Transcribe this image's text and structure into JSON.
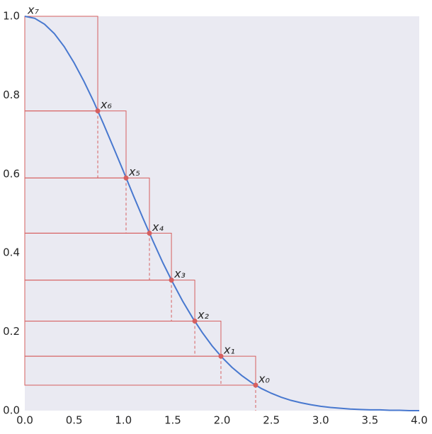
{
  "chart_data": {
    "type": "line",
    "xlim": [
      0,
      4
    ],
    "ylim": [
      0,
      1
    ],
    "xticks": [
      {
        "value": 0,
        "label": "0.0"
      },
      {
        "value": 0.5,
        "label": "0.5"
      },
      {
        "value": 1,
        "label": "1.0"
      },
      {
        "value": 1.5,
        "label": "1.5"
      },
      {
        "value": 2,
        "label": "2.0"
      },
      {
        "value": 2.5,
        "label": "2.5"
      },
      {
        "value": 3,
        "label": "3.0"
      },
      {
        "value": 3.5,
        "label": "3.5"
      },
      {
        "value": 4,
        "label": "4.0"
      }
    ],
    "yticks": [
      {
        "value": 0,
        "label": "0.0"
      },
      {
        "value": 0.2,
        "label": "0.2"
      },
      {
        "value": 0.4,
        "label": "0.4"
      },
      {
        "value": 0.6,
        "label": "0.6"
      },
      {
        "value": 0.8,
        "label": "0.8"
      },
      {
        "value": 1,
        "label": "1.0"
      }
    ],
    "curve": {
      "color": "#4878cf",
      "x": [
        0,
        0.1,
        0.2,
        0.3,
        0.4,
        0.5,
        0.6,
        0.7,
        0.8,
        0.9,
        1.0,
        1.1,
        1.2,
        1.3,
        1.4,
        1.5,
        1.6,
        1.7,
        1.8,
        1.9,
        2.0,
        2.1,
        2.2,
        2.3,
        2.4,
        2.5,
        2.6,
        2.7,
        2.8,
        2.9,
        3.0,
        3.1,
        3.2,
        3.3,
        3.4,
        3.5,
        3.6,
        3.7,
        3.8,
        3.9,
        4.0
      ],
      "values": [
        1,
        0.995,
        0.98,
        0.956,
        0.923,
        0.882,
        0.835,
        0.783,
        0.726,
        0.667,
        0.607,
        0.546,
        0.487,
        0.43,
        0.375,
        0.325,
        0.278,
        0.236,
        0.198,
        0.164,
        0.135,
        0.11,
        0.089,
        0.071,
        0.056,
        0.044,
        0.034,
        0.026,
        0.02,
        0.015,
        0.011,
        0.008,
        0.006,
        0.004,
        0.003,
        0.002,
        0.002,
        0.001,
        0.001,
        0.0,
        0.0
      ]
    },
    "points": {
      "color": "#d65f5f",
      "x": [
        2.341,
        1.989,
        1.724,
        1.487,
        1.264,
        1.027,
        0.74,
        0
      ],
      "values": [
        0.0646,
        0.138,
        0.227,
        0.331,
        0.45,
        0.59,
        0.76,
        1.0
      ],
      "labels": [
        "x₀",
        "x₁",
        "x₂",
        "x₃",
        "x₄",
        "x₅",
        "x₆",
        "x₇"
      ]
    }
  }
}
